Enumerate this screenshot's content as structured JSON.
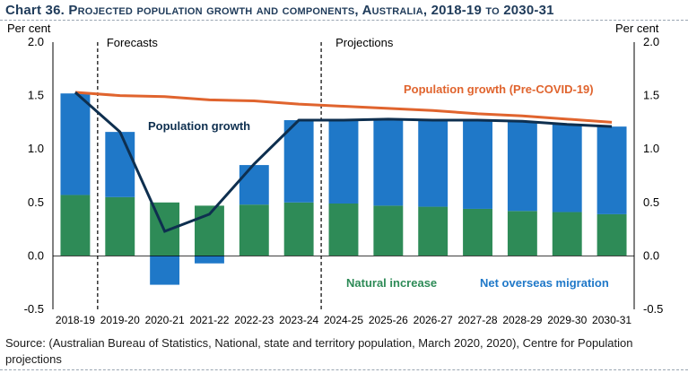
{
  "title": {
    "number": "Chart 36.",
    "text": "Projected population growth and components, Australia, 2018-19 to 2030-31"
  },
  "source": "Source: (Australian Bureau of Statistics, National, state and territory population, March 2020, 2020), Centre for Population projections",
  "colors": {
    "natural_increase": "#2e8b57",
    "net_overseas_migration": "#1f78c8",
    "population_growth": "#0e2f4f",
    "pre_covid": "#e0642e",
    "title": "#1f3b5a"
  },
  "chart_data": {
    "type": "bar",
    "stacked": true,
    "ylabel_left": "Per cent",
    "ylabel_right": "Per cent",
    "ylim": [
      -0.5,
      2.0
    ],
    "yticks": [
      "2.0",
      "1.5",
      "1.0",
      "0.5",
      "0.0",
      "-0.5"
    ],
    "categories": [
      "2018-19",
      "2019-20",
      "2020-21",
      "2021-22",
      "2022-23",
      "2023-24",
      "2024-25",
      "2025-26",
      "2026-27",
      "2027-28",
      "2028-29",
      "2029-30",
      "2030-31"
    ],
    "series": [
      {
        "name": "Natural increase",
        "type": "bar",
        "values": [
          0.57,
          0.55,
          0.5,
          0.47,
          0.48,
          0.5,
          0.49,
          0.47,
          0.46,
          0.44,
          0.42,
          0.41,
          0.39
        ]
      },
      {
        "name": "Net overseas migration",
        "type": "bar",
        "values": [
          0.95,
          0.61,
          -0.27,
          -0.07,
          0.37,
          0.77,
          0.78,
          0.81,
          0.81,
          0.83,
          0.84,
          0.82,
          0.82
        ]
      },
      {
        "name": "Population growth",
        "type": "line",
        "values": [
          1.53,
          1.16,
          0.23,
          0.39,
          0.86,
          1.27,
          1.27,
          1.28,
          1.27,
          1.27,
          1.26,
          1.23,
          1.21
        ]
      },
      {
        "name": "Population growth (Pre-COVID-19)",
        "type": "line",
        "values": [
          1.53,
          1.5,
          1.49,
          1.46,
          1.45,
          1.42,
          1.4,
          1.38,
          1.36,
          1.33,
          1.31,
          1.28,
          1.25
        ]
      }
    ],
    "annotations": [
      "Forecasts",
      "Projections"
    ],
    "divider_after": [
      "2018-19",
      "2023-24"
    ],
    "legend": {
      "population_growth": "Population growth",
      "pre_covid": "Population growth (Pre-COVID-19)",
      "natural_increase": "Natural increase",
      "net_overseas_migration": "Net overseas migration"
    }
  }
}
